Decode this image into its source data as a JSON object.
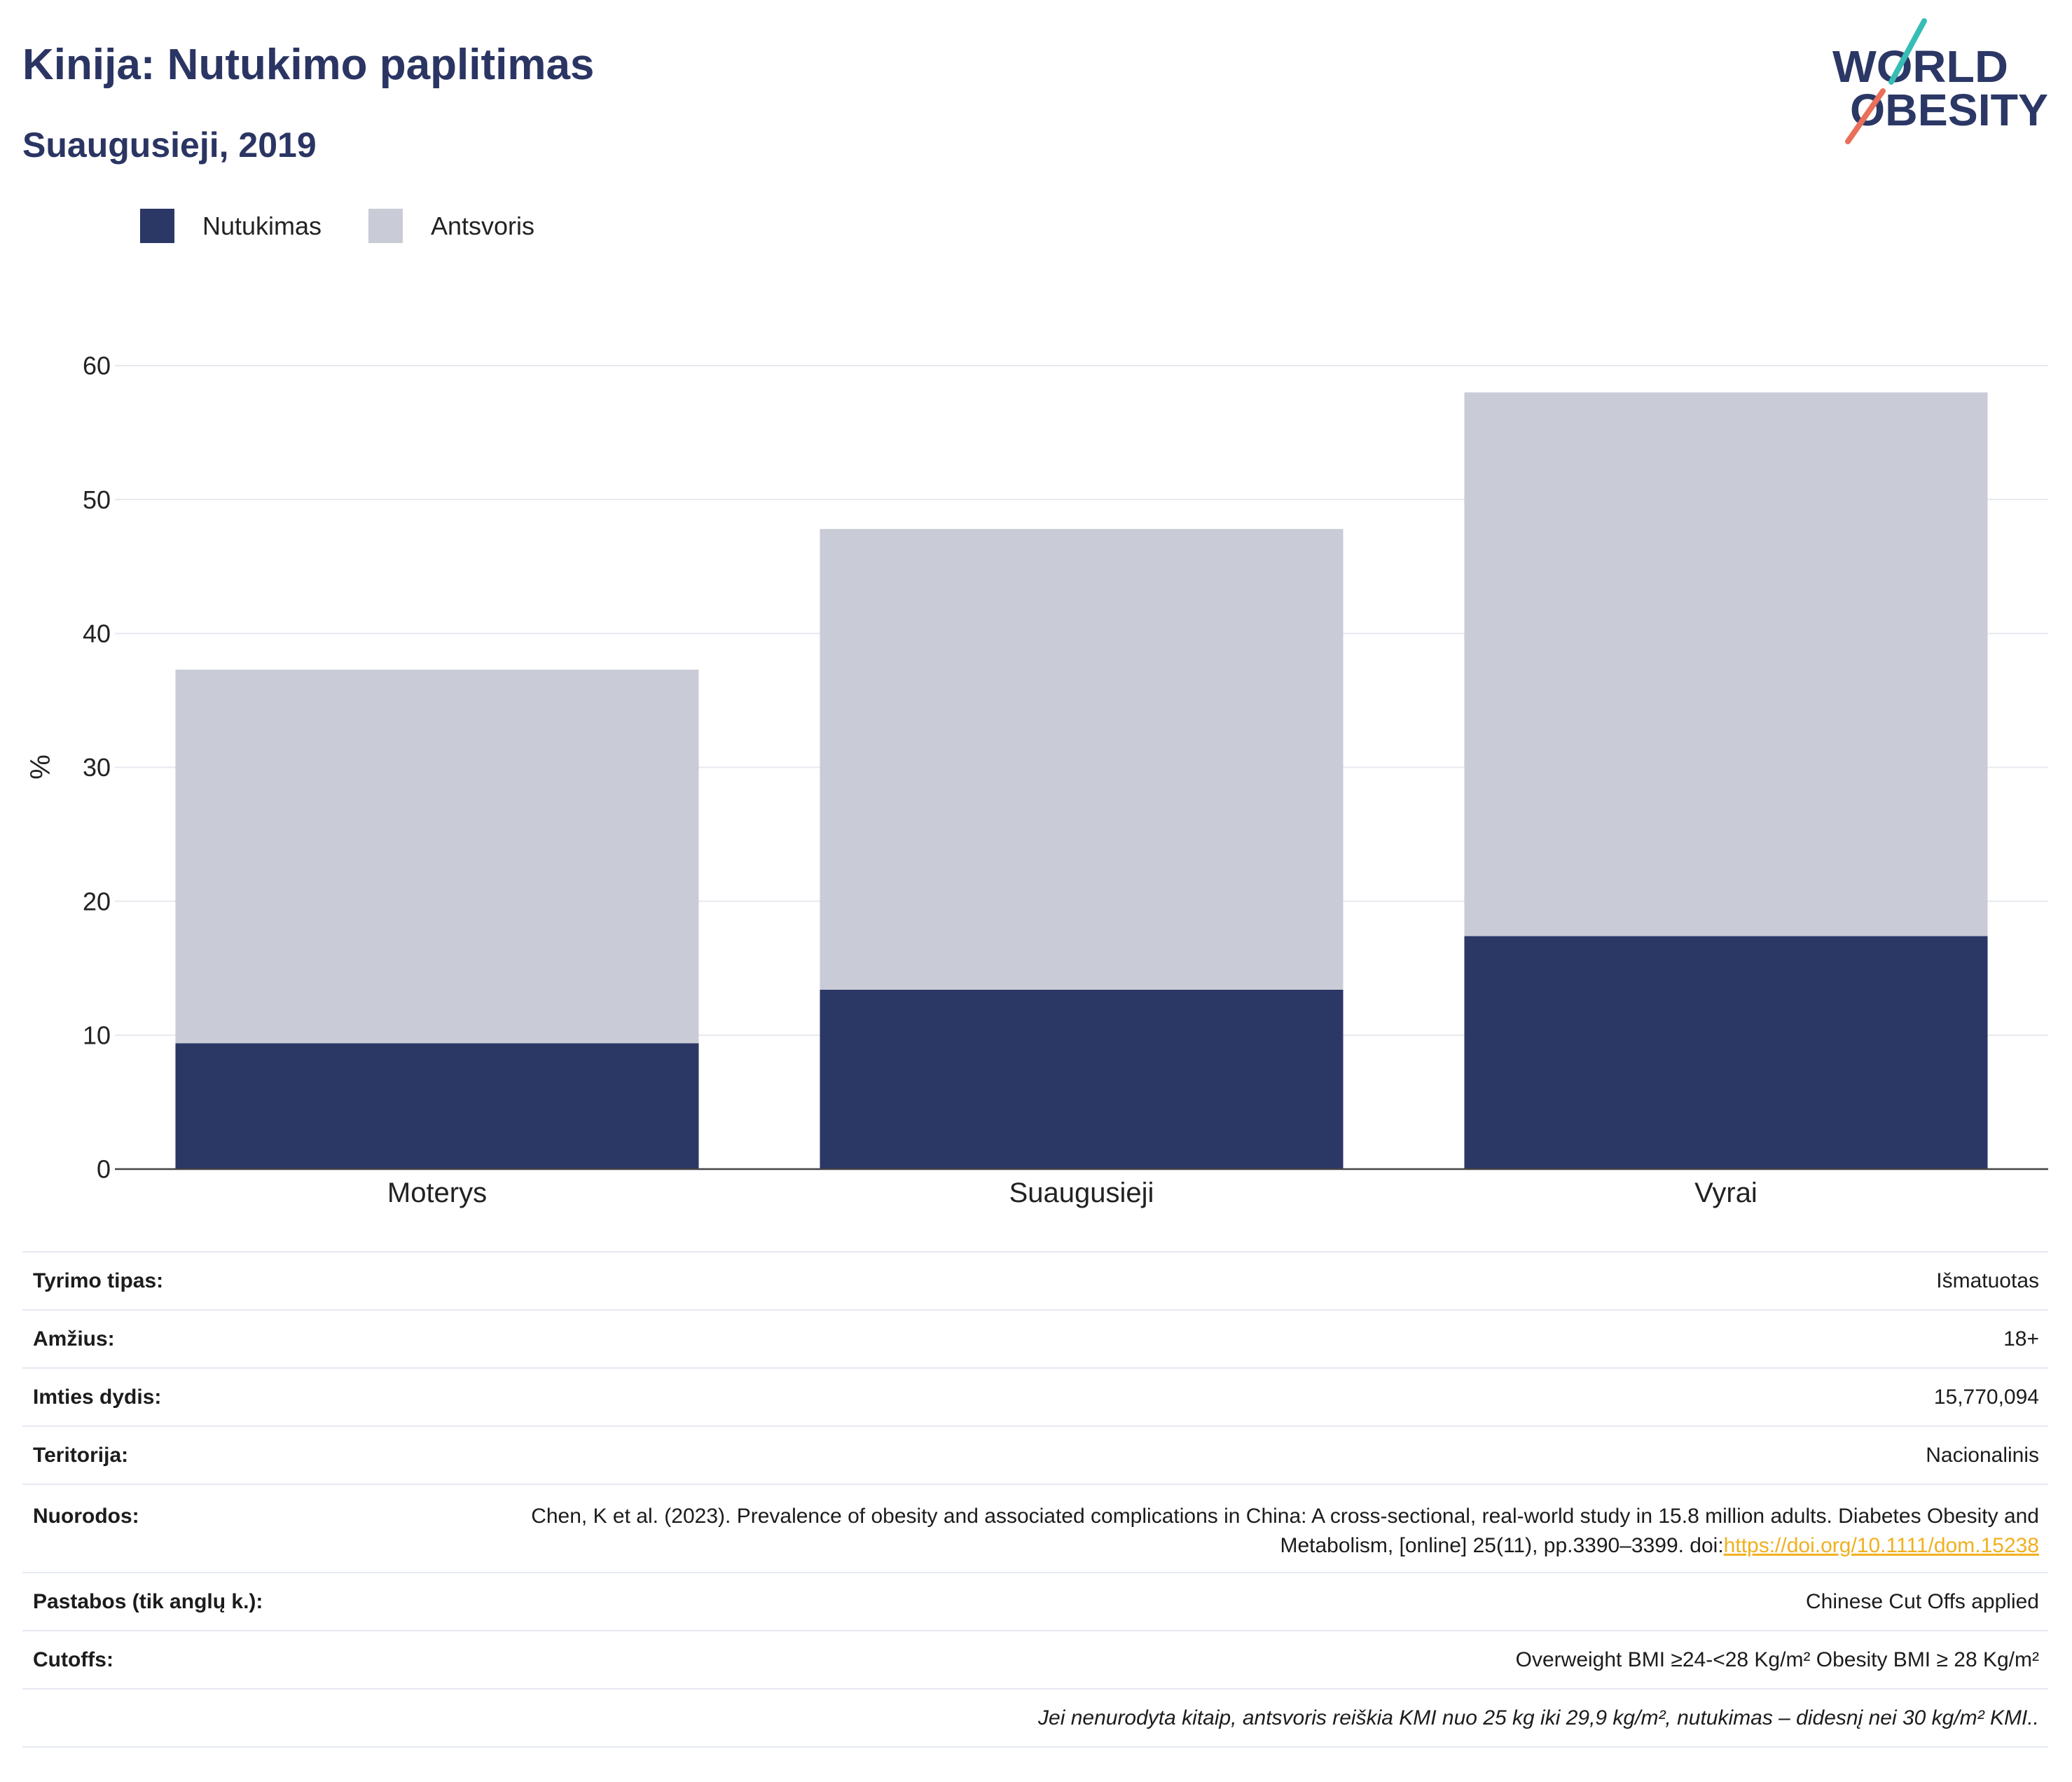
{
  "chart_data": {
    "type": "bar",
    "stacked": true,
    "title": "Kinija: Nutukimo paplitimas",
    "subtitle": "Suaugusieji, 2019",
    "categories": [
      "Moterys",
      "Suaugusieji",
      "Vyrai"
    ],
    "series": [
      {
        "name": "Nutukimas",
        "values": [
          9.4,
          13.4,
          17.4
        ],
        "color": "#2b3765"
      },
      {
        "name": "Antsvoris",
        "values": [
          27.9,
          34.4,
          40.6
        ],
        "color": "#c9cbd6"
      }
    ],
    "xlabel": "",
    "ylabel": "%",
    "ylim": [
      0,
      60
    ],
    "yticks": [
      0,
      10,
      20,
      30,
      40,
      50,
      60
    ],
    "grid": true,
    "legend_position": "top-left"
  },
  "logo": {
    "line1": "WORLD",
    "line2": "OBESITY"
  },
  "details": [
    {
      "label": "Tyrimo tipas:",
      "value": "Išmatuotas"
    },
    {
      "label": "Amžius:",
      "value": "18+"
    },
    {
      "label": "Imties dydis:",
      "value": "15,770,094"
    },
    {
      "label": "Teritorija:",
      "value": "Nacionalinis"
    },
    {
      "label": "Nuorodos:",
      "value": "Chen, K et al. (2023). Prevalence of obesity and associated complications in China: A cross-sectional, real-world study in 15.8 million adults. Diabetes Obesity and Metabolism, [online] 25(11), pp.3390–3399. doi:",
      "link": "https://doi.org/10.1111/dom.15238"
    },
    {
      "label": "Pastabos (tik anglų k.):",
      "value": "Chinese Cut Offs applied"
    },
    {
      "label": "Cutoffs:",
      "value": "Overweight BMI ≥24-<28 Kg/m² Obesity BMI ≥ 28 Kg/m²"
    }
  ],
  "footnote": "Jei nenurodyta kitaip, antsvoris reiškia KMI nuo 25 kg iki 29,9 kg/m², nutukimas – didesnį nei 30 kg/m² KMI.."
}
